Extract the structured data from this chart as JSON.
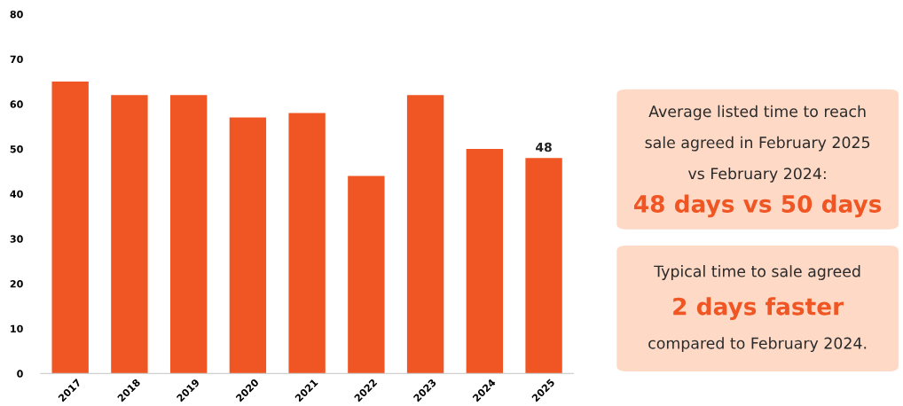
{
  "chart_data": {
    "type": "bar",
    "categories": [
      "2017",
      "2018",
      "2019",
      "2020",
      "2021",
      "2022",
      "2023",
      "2024",
      "2025"
    ],
    "values": [
      65,
      62,
      62,
      57,
      58,
      44,
      62,
      50,
      48
    ],
    "value_labels": [
      null,
      null,
      null,
      null,
      null,
      null,
      null,
      null,
      "48"
    ],
    "color": "#f05623",
    "ylim": [
      0,
      80
    ],
    "yticks": [
      0,
      10,
      20,
      30,
      40,
      50,
      60,
      70,
      80
    ],
    "grid": false,
    "legend": false,
    "annotations": [
      "Average listed time to reach",
      "sale agreed in February 2025",
      "vs February 2024:",
      "48 days vs 50 days",
      "Typical time to sale agreed",
      "2 days faster",
      "compared to February 2024."
    ]
  }
}
